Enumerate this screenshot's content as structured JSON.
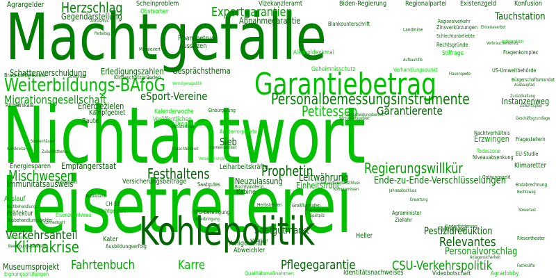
{
  "palette": {
    "background": "#ffffff",
    "dark_green": "#006400",
    "green": "#008000",
    "medium_green": "#00a000",
    "bright_green": "#00c000",
    "lime": "#00e000"
  },
  "words": [
    {
      "text": "Machtgefälle",
      "color": "#008000"
    },
    {
      "text": "Nichtantwort",
      "color": "#00c000"
    },
    {
      "text": "Leisetreterei",
      "color": "#00c000"
    },
    {
      "text": "Kohlepolitik",
      "color": "#006400"
    },
    {
      "text": "Garantiebetrag",
      "color": "#00c000"
    },
    {
      "text": "Weiterbildungs-BAföG",
      "color": "#00c000"
    },
    {
      "text": "Personalbemessungsinstrumente",
      "color": "#008000"
    },
    {
      "text": "Regierungswillkür",
      "color": "#00a000"
    },
    {
      "text": "Herzschlag",
      "color": "#008000"
    },
    {
      "text": "Exportgarantien",
      "color": "#00a000"
    },
    {
      "text": "Garantierente",
      "color": "#006400"
    },
    {
      "text": "Petitessen",
      "color": "#00c000"
    },
    {
      "text": "Festhaltens",
      "color": "#006400"
    },
    {
      "text": "Prophetin",
      "color": "#006400"
    },
    {
      "text": "Mischwesen",
      "color": "#00a000"
    },
    {
      "text": "Verkehrsanteil",
      "color": "#006400"
    },
    {
      "text": "Klimakrise",
      "color": "#00a000"
    },
    {
      "text": "Fahrtenbuch",
      "color": "#00a000"
    },
    {
      "text": "Karre",
      "color": "#00c000"
    },
    {
      "text": "Relevantes",
      "color": "#006400"
    },
    {
      "text": "Pflegegarantie",
      "color": "#006400"
    },
    {
      "text": "CSU-Verkehrspolitik",
      "color": "#00a000"
    },
    {
      "text": "eSport-Vereine",
      "color": "#006400"
    },
    {
      "text": "Migrationsgesellschaft",
      "color": "#00a000"
    },
    {
      "text": "Ende-zu-Ende-Verschlüsselungen",
      "color": "#008000"
    },
    {
      "text": "Leitwährung",
      "color": "#006400"
    },
    {
      "text": "Pestizidreduktion",
      "color": "#006400"
    },
    {
      "text": "Personalvorschlag",
      "color": "#00a000"
    },
    {
      "text": "Saatgutmarkt",
      "color": "#006400"
    },
    {
      "text": "Museumsprojekt",
      "color": "#006400"
    },
    {
      "text": "Agrargelder",
      "color": "#006400"
    },
    {
      "text": "Scheinproblem",
      "color": "#006400"
    },
    {
      "text": "Vizekanzleramt",
      "color": "#006400"
    },
    {
      "text": "Biden-Regierung",
      "color": "#006400"
    },
    {
      "text": "Regionalpartei",
      "color": "#006400"
    },
    {
      "text": "Existenzgeld",
      "color": "#006400"
    },
    {
      "text": "Konfusion",
      "color": "#006400"
    },
    {
      "text": "Gegendarstellung",
      "color": "#006400"
    },
    {
      "text": "Abnahmegarantie",
      "color": "#006400"
    },
    {
      "text": "Tauchstation",
      "color": "#006400"
    },
    {
      "text": "Finanzbetrug",
      "color": "#006400"
    },
    {
      "text": "Aussitzen",
      "color": "#006400"
    },
    {
      "text": "Schattenverschuldung",
      "color": "#006400"
    },
    {
      "text": "Erledigungszahlen",
      "color": "#006400"
    },
    {
      "text": "Gesprächsthema",
      "color": "#006400"
    },
    {
      "text": "Energiezielen",
      "color": "#006400"
    },
    {
      "text": "Kampfgebiet",
      "color": "#006400"
    },
    {
      "text": "Raute",
      "color": "#006400"
    },
    {
      "text": "Sieb",
      "color": "#006400"
    },
    {
      "text": "Energiesparen",
      "color": "#006400"
    },
    {
      "text": "Empfängerstaat",
      "color": "#006400"
    },
    {
      "text": "Instanzenweg",
      "color": "#006400"
    },
    {
      "text": "Erzwingen",
      "color": "#00a000"
    },
    {
      "text": "Neuzulassung",
      "color": "#006400"
    },
    {
      "text": "Einheitsfront",
      "color": "#00a000"
    },
    {
      "text": "Immunitätsausweis",
      "color": "#006400"
    },
    {
      "text": "Auslauf",
      "color": "#00a000"
    },
    {
      "text": "Kater",
      "color": "#006400"
    },
    {
      "text": "Heller",
      "color": "#006400"
    },
    {
      "text": "Fähnchen",
      "color": "#006400"
    },
    {
      "text": "Amigo-Affäre",
      "color": "#006400"
    },
    {
      "text": "Abweichler",
      "color": "#006400"
    },
    {
      "text": "Identitätsnachweises",
      "color": "#006400"
    },
    {
      "text": "Klimaretter",
      "color": "#006400"
    },
    {
      "text": "Leiharbeitskräfte",
      "color": "#006400"
    },
    {
      "text": "Versicherungsbeiträge",
      "color": "#006400"
    },
    {
      "text": "Kabine",
      "color": "#006400"
    },
    {
      "text": "Riesentheater",
      "color": "#006400"
    },
    {
      "text": "Einbürgerung",
      "color": "#006400"
    },
    {
      "text": "Bürgerschaftsmandat",
      "color": "#006400"
    },
    {
      "text": "Obstsorten",
      "color": "#00e000"
    },
    {
      "text": "Kalenderwoche",
      "color": "#00e000"
    },
    {
      "text": "Veröffentlichen",
      "color": "#00e000"
    },
    {
      "text": "Drogenmarkt",
      "color": "#00e000"
    },
    {
      "text": "Klimaschutzgründen",
      "color": "#006400"
    },
    {
      "text": "Geheimnisschutz",
      "color": "#00e000"
    },
    {
      "text": "Antiterrorpakete",
      "color": "#00e000"
    },
    {
      "text": "Rechtsgründe",
      "color": "#006400"
    },
    {
      "text": "Stilfrage",
      "color": "#00e000"
    },
    {
      "text": "Fragenkomplex",
      "color": "#006400"
    },
    {
      "text": "Alkoholdenkmal",
      "color": "#00e000"
    },
    {
      "text": "Verhandlungspunkt",
      "color": "#00e000"
    },
    {
      "text": "US-Umweltbehörde",
      "color": "#006400"
    },
    {
      "text": "Ausbildungserfolg",
      "color": "#006400"
    },
    {
      "text": "Eignungsprüfungen",
      "color": "#00e000"
    },
    {
      "text": "Agrarlobby",
      "color": "#00e000"
    },
    {
      "text": "Videobotschaft",
      "color": "#006400"
    },
    {
      "text": "Nachtverhältnis",
      "color": "#006400"
    },
    {
      "text": "Fragestellern",
      "color": "#006400"
    },
    {
      "text": "EU-Studie",
      "color": "#006400"
    },
    {
      "text": "Richterskala",
      "color": "#006400"
    },
    {
      "text": "Braunkohlereviere",
      "color": "#006400"
    },
    {
      "text": "Millisievert",
      "color": "#006400"
    },
    {
      "text": "Blankounterschrift",
      "color": "#006400"
    },
    {
      "text": "Zinsverkürzungen",
      "color": "#006400"
    },
    {
      "text": "Schlechtunbeliebte",
      "color": "#006400"
    },
    {
      "text": "Todeszone",
      "color": "#00e000"
    },
    {
      "text": "Niveauabsenkung",
      "color": "#006400"
    },
    {
      "text": "Ordnungsgeld",
      "color": "#006400"
    },
    {
      "text": "Präfektur",
      "color": "#006400"
    },
    {
      "text": "Eisbehandlungsgelder",
      "color": "#006400"
    },
    {
      "text": "Regionalverkehr",
      "color": "#006400"
    },
    {
      "text": "Ziellahr",
      "color": "#006400"
    },
    {
      "text": "Endabrechnung",
      "color": "#006400"
    },
    {
      "text": "Agraminister",
      "color": "#006400"
    },
    {
      "text": "Großflughafen",
      "color": "#006400"
    },
    {
      "text": "Lichtgestalt",
      "color": "#00a000"
    },
    {
      "text": "Qualitätsmaßnahmen",
      "color": "#00e000"
    },
    {
      "text": "Kinderförderung",
      "color": "#006400"
    },
    {
      "text": "Eisenzeitniveau",
      "color": "#00e000"
    },
    {
      "text": "Sachbehandlung",
      "color": "#006400"
    },
    {
      "text": "Lohnentgelt",
      "color": "#006400"
    },
    {
      "text": "SPD-Beteiligung",
      "color": "#006400"
    },
    {
      "text": "Herbstreden",
      "color": "#006400"
    },
    {
      "text": "Saatgutes",
      "color": "#006400"
    },
    {
      "text": "Buchhändlerin",
      "color": "#006400"
    },
    {
      "text": "Landmine",
      "color": "#006400"
    },
    {
      "text": "Wirtschaftsgebiet",
      "color": "#006400"
    },
    {
      "text": "Entscheidungsbericht",
      "color": "#006400"
    },
    {
      "text": "Gemeinsamkeit",
      "color": "#006400"
    },
    {
      "text": "Unterbringung",
      "color": "#006400"
    },
    {
      "text": "Zurückhaltung",
      "color": "#006400"
    },
    {
      "text": "Anlagensicherheit",
      "color": "#006400"
    },
    {
      "text": "Verhandlungsabschluss",
      "color": "#006400"
    },
    {
      "text": "Altruismus",
      "color": "#006400"
    },
    {
      "text": "Erwartung",
      "color": "#006400"
    },
    {
      "text": "CH-53",
      "color": "#006400"
    },
    {
      "text": "Ministerkrise",
      "color": "#006400"
    },
    {
      "text": "Beerdigungsgarantien",
      "color": "#006400"
    },
    {
      "text": "Geschäftsgrundlage",
      "color": "#006400"
    },
    {
      "text": "Integration",
      "color": "#00e000"
    },
    {
      "text": "Sonnenhäuser",
      "color": "#006400"
    },
    {
      "text": "Mitteleinsatz",
      "color": "#006400"
    },
    {
      "text": "Zukunftsthema",
      "color": "#006400"
    },
    {
      "text": "Gutachterstreit",
      "color": "#006400"
    },
    {
      "text": "Windräder",
      "color": "#006400"
    },
    {
      "text": "Schulbildung",
      "color": "#00e000"
    },
    {
      "text": "Mittelstand",
      "color": "#006400"
    },
    {
      "text": "Planungsbüro",
      "color": "#006400"
    },
    {
      "text": "Kompromissen",
      "color": "#006400"
    },
    {
      "text": "Einreiseverbot",
      "color": "#006400"
    },
    {
      "text": "Verbraucherschutz",
      "color": "#006400"
    },
    {
      "text": "Spaltpilz",
      "color": "#006400"
    },
    {
      "text": "Jahresabschluss",
      "color": "#006400"
    },
    {
      "text": "Frauenquote",
      "color": "#006400"
    },
    {
      "text": "Aufbauhilfe",
      "color": "#006400"
    },
    {
      "text": "Versammlungsrecht",
      "color": "#00e000"
    },
    {
      "text": "Vermögenspolitik",
      "color": "#00e000"
    },
    {
      "text": "Parteitag",
      "color": "#006400"
    },
    {
      "text": "Stromnetz",
      "color": "#006400"
    },
    {
      "text": "Rechtsweg",
      "color": "#006400"
    },
    {
      "text": "Steuerlast",
      "color": "#006400"
    },
    {
      "text": "Ausbaupfad",
      "color": "#006400"
    },
    {
      "text": "Zukunftsplan",
      "color": "#006400"
    },
    {
      "text": "Wahlkreise",
      "color": "#006400"
    },
    {
      "text": "Fachkräfte",
      "color": "#006400"
    }
  ]
}
